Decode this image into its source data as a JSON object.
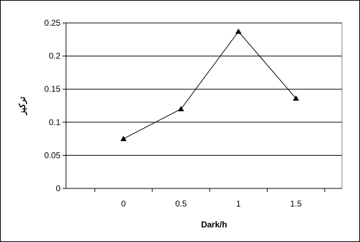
{
  "chart_data": {
    "type": "line",
    "x": [
      0,
      0.5,
      1,
      1.5
    ],
    "categories": [
      "0",
      "0.5",
      "1",
      "1.5"
    ],
    "series": [
      {
        "values": [
          0.075,
          0.12,
          0.237,
          0.136
        ]
      }
    ],
    "xlabel": "Dark/h",
    "ylabel": "تركيز",
    "ylim": [
      0,
      0.25
    ],
    "yticks": [
      "0",
      "0.05",
      "0.1",
      "0.15",
      "0.2",
      "0.25"
    ],
    "grid": "horizontal",
    "marker": "triangle",
    "colors": {
      "line": "#000000",
      "grid": "#000000",
      "frame": "#000000"
    }
  }
}
